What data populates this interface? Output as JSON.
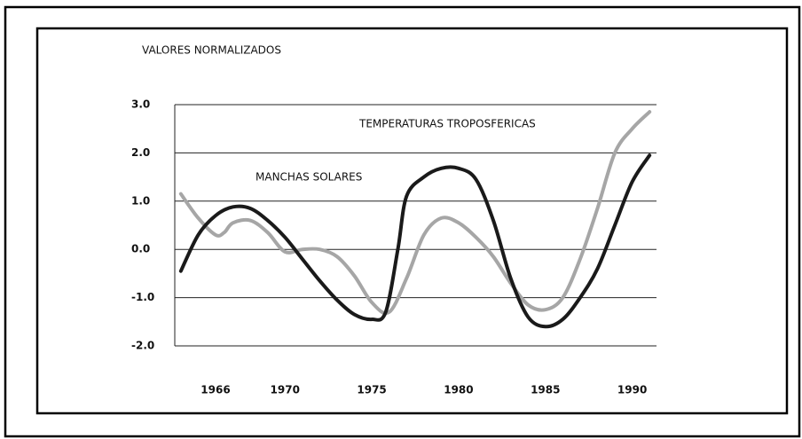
{
  "chart_data": {
    "type": "line",
    "ylabel": "VALORES NORMALIZADOS",
    "annotations": [
      "TEMPERATURAS TROPOSFERICAS",
      "MANCHAS SOLARES"
    ],
    "xlim": [
      1963.65,
      1991.4
    ],
    "xticks": [
      1966,
      1970,
      1975,
      1980,
      1985,
      1990
    ],
    "ylim": [
      -2,
      3
    ],
    "yticks": [
      {
        "value": 3,
        "label": "3.0"
      },
      {
        "value": 2,
        "label": "2.0"
      },
      {
        "value": 1,
        "label": "1.0"
      },
      {
        "value": 0,
        "label": "0.0"
      },
      {
        "value": -1,
        "label": "-1.0"
      },
      {
        "value": -2,
        "label": "-2.0"
      }
    ],
    "grid": true,
    "series": [
      {
        "name": "MANCHAS SOLARES",
        "color": "#1a1a1a",
        "x": [
          1964,
          1965,
          1966,
          1967,
          1968,
          1969,
          1970,
          1971,
          1972,
          1973,
          1974,
          1975,
          1975.8,
          1976.5,
          1977,
          1978,
          1979,
          1980,
          1981,
          1982,
          1983,
          1984,
          1985,
          1986,
          1987,
          1988,
          1989,
          1990,
          1991
        ],
        "values": [
          -0.45,
          0.3,
          0.7,
          0.88,
          0.85,
          0.6,
          0.25,
          -0.2,
          -0.65,
          -1.05,
          -1.35,
          -1.45,
          -1.3,
          0.0,
          1.1,
          1.5,
          1.68,
          1.68,
          1.45,
          0.6,
          -0.6,
          -1.4,
          -1.6,
          -1.45,
          -1.0,
          -0.4,
          0.5,
          1.4,
          1.95
        ]
      },
      {
        "name": "TEMPERATURAS TROPOSFERICAS",
        "color": "#a6a6a6",
        "x": [
          1964,
          1965,
          1966,
          1966.5,
          1967,
          1968,
          1969,
          1970,
          1971,
          1972,
          1973,
          1974,
          1975,
          1976,
          1977,
          1978,
          1979,
          1980,
          1981,
          1982,
          1983,
          1984,
          1985,
          1986,
          1987,
          1988,
          1989,
          1990,
          1991
        ],
        "values": [
          1.15,
          0.65,
          0.3,
          0.35,
          0.55,
          0.6,
          0.35,
          -0.05,
          0.0,
          0.0,
          -0.15,
          -0.55,
          -1.1,
          -1.3,
          -0.6,
          0.3,
          0.65,
          0.55,
          0.25,
          -0.15,
          -0.7,
          -1.15,
          -1.25,
          -1.0,
          -0.2,
          0.85,
          2.0,
          2.5,
          2.85
        ]
      }
    ]
  }
}
